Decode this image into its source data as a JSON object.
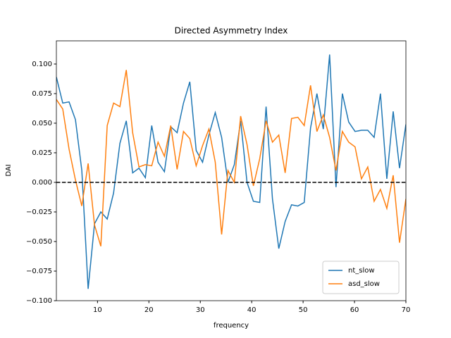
{
  "chart_data": {
    "type": "line",
    "title": "Directed Asymmetry Index",
    "xlabel": "frequency",
    "ylabel": "DAI",
    "x": [
      2,
      3.24,
      4.47,
      5.71,
      6.95,
      8.18,
      9.42,
      10.65,
      11.89,
      13.13,
      14.36,
      15.6,
      16.84,
      18.07,
      19.31,
      20.55,
      21.78,
      23.02,
      24.25,
      25.49,
      26.73,
      27.96,
      29.2,
      30.44,
      31.67,
      32.91,
      34.15,
      35.38,
      36.62,
      37.85,
      39.09,
      40.33,
      41.56,
      42.8,
      44.04,
      45.27,
      46.51,
      47.75,
      48.98,
      50.22,
      51.45,
      52.69,
      53.93,
      55.16,
      56.4,
      57.64,
      58.87,
      60.11,
      61.35,
      62.58,
      63.82,
      65.05,
      66.29,
      67.53,
      68.76,
      70
    ],
    "series": [
      {
        "name": "nt_slow",
        "color": "#1f77b4",
        "values": [
          0.089,
          0.067,
          0.068,
          0.053,
          0.01,
          -0.09,
          -0.035,
          -0.025,
          -0.031,
          -0.009,
          0.033,
          0.052,
          0.008,
          0.012,
          0.004,
          0.048,
          0.017,
          0.009,
          0.047,
          0.042,
          0.067,
          0.085,
          0.027,
          0.017,
          0.04,
          0.059,
          0.038,
          0.0,
          0.015,
          0.052,
          0.0,
          -0.016,
          -0.017,
          0.064,
          -0.014,
          -0.056,
          -0.033,
          -0.019,
          -0.02,
          -0.017,
          0.046,
          0.075,
          0.045,
          0.108,
          -0.004,
          0.075,
          0.051,
          0.043,
          0.044,
          0.044,
          0.038,
          0.075,
          0.003,
          0.06,
          0.012,
          0.049
        ]
      },
      {
        "name": "asd_slow",
        "color": "#ff7f0e",
        "values": [
          0.07,
          0.062,
          0.028,
          0.002,
          -0.02,
          0.016,
          -0.036,
          -0.054,
          0.048,
          0.067,
          0.064,
          0.095,
          0.042,
          0.013,
          0.015,
          0.014,
          0.034,
          0.022,
          0.048,
          0.011,
          0.043,
          0.037,
          0.014,
          0.031,
          0.045,
          0.017,
          -0.044,
          0.01,
          0.0,
          0.056,
          0.032,
          -0.003,
          0.02,
          0.052,
          0.034,
          0.04,
          0.008,
          0.054,
          0.055,
          0.048,
          0.082,
          0.043,
          0.057,
          0.038,
          0.01,
          0.043,
          0.034,
          0.03,
          0.003,
          0.013,
          -0.016,
          -0.006,
          -0.022,
          0.006,
          -0.051,
          -0.014
        ]
      }
    ],
    "hline": 0,
    "xlim": [
      2,
      70
    ],
    "ylim": [
      -0.1,
      0.1196
    ],
    "xticks": [
      10,
      20,
      30,
      40,
      50,
      60,
      70
    ],
    "yticks": [
      {
        "value": -0.1,
        "label": "−0.100"
      },
      {
        "value": -0.075,
        "label": "−0.075"
      },
      {
        "value": -0.05,
        "label": "−0.050"
      },
      {
        "value": -0.025,
        "label": "−0.025"
      },
      {
        "value": 0,
        "label": "0.000"
      },
      {
        "value": 0.025,
        "label": "0.025"
      },
      {
        "value": 0.05,
        "label": "0.050"
      },
      {
        "value": 0.075,
        "label": "0.075"
      },
      {
        "value": 0.1,
        "label": "0.100"
      }
    ],
    "legend": "lower right"
  }
}
